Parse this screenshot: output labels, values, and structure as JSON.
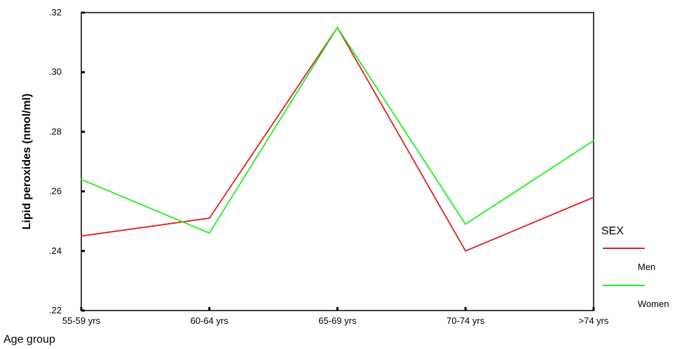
{
  "chart_data": {
    "type": "line",
    "categories": [
      "55-59  yrs",
      "60-64  yrs",
      "65-69  yrs",
      "70-74  yrs",
      ">74  yrs"
    ],
    "series": [
      {
        "name": "Men",
        "color": "#e02020",
        "values": [
          0.245,
          0.251,
          0.315,
          0.24,
          0.258
        ]
      },
      {
        "name": "Women",
        "color": "#22ee22",
        "values": [
          0.264,
          0.246,
          0.315,
          0.249,
          0.277
        ]
      }
    ],
    "ylim": [
      0.22,
      0.32
    ],
    "yticks": [
      0.22,
      0.24,
      0.26,
      0.28,
      0.3,
      0.32
    ],
    "ytick_labels": [
      ".22",
      ".24",
      ".26",
      ".28",
      ".30",
      ".32"
    ],
    "xlabel": "Age group",
    "ylabel": "Lipid peroxides (nmol/ml)",
    "legend_title": "SEX",
    "legend_position": "right",
    "grid": false
  }
}
